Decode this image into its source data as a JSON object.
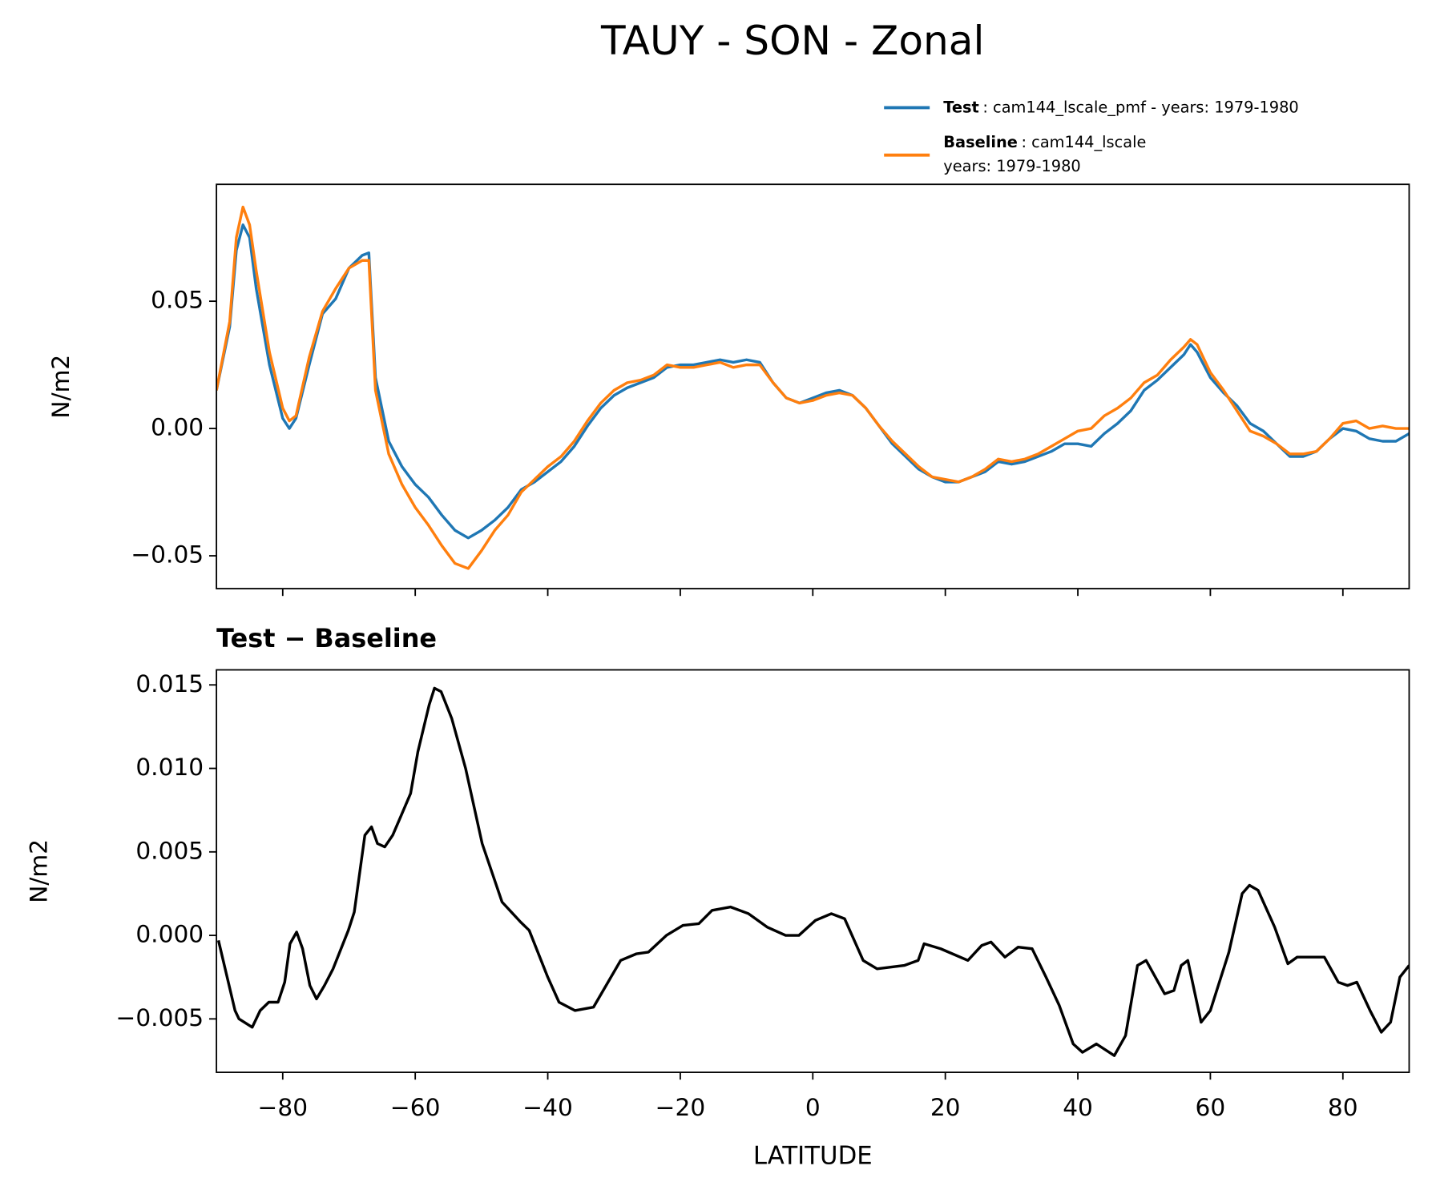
{
  "chart_data": [
    {
      "type": "line",
      "title": "TAUY - SON - Zonal",
      "ylabel": "N/m2",
      "x": [
        -90,
        -88,
        -87,
        -86,
        -85,
        -84,
        -82,
        -80,
        -79,
        -78,
        -76,
        -74,
        -72,
        -70,
        -68,
        -67,
        -66,
        -64,
        -62,
        -60,
        -58,
        -56,
        -54,
        -52,
        -50,
        -48,
        -46,
        -44,
        -42,
        -40,
        -38,
        -36,
        -34,
        -32,
        -30,
        -28,
        -26,
        -24,
        -22,
        -20,
        -18,
        -16,
        -14,
        -12,
        -10,
        -8,
        -6,
        -4,
        -2,
        0,
        2,
        4,
        6,
        8,
        10,
        12,
        14,
        16,
        18,
        20,
        22,
        24,
        26,
        28,
        30,
        32,
        34,
        36,
        38,
        40,
        42,
        44,
        46,
        48,
        50,
        52,
        54,
        56,
        57,
        58,
        60,
        62,
        64,
        66,
        68,
        70,
        72,
        74,
        76,
        78,
        80,
        82,
        84,
        86,
        88,
        90
      ],
      "series": [
        {
          "name": "Test",
          "description": [
            ": cam144_lscale_pmf - years: 1979-1980"
          ],
          "color": "#1f77b4",
          "values": [
            0.015,
            0.04,
            0.07,
            0.08,
            0.075,
            0.055,
            0.025,
            0.004,
            0.0,
            0.004,
            0.025,
            0.045,
            0.051,
            0.063,
            0.068,
            0.069,
            0.02,
            -0.005,
            -0.015,
            -0.022,
            -0.027,
            -0.034,
            -0.04,
            -0.043,
            -0.04,
            -0.036,
            -0.031,
            -0.024,
            -0.021,
            -0.017,
            -0.013,
            -0.007,
            0.001,
            0.008,
            0.013,
            0.016,
            0.018,
            0.02,
            0.024,
            0.025,
            0.025,
            0.026,
            0.027,
            0.026,
            0.027,
            0.026,
            0.018,
            0.012,
            0.01,
            0.012,
            0.014,
            0.015,
            0.013,
            0.008,
            0.001,
            -0.006,
            -0.011,
            -0.016,
            -0.019,
            -0.021,
            -0.021,
            -0.019,
            -0.017,
            -0.013,
            -0.014,
            -0.013,
            -0.011,
            -0.009,
            -0.006,
            -0.006,
            -0.007,
            -0.002,
            0.002,
            0.007,
            0.015,
            0.019,
            0.024,
            0.029,
            0.033,
            0.03,
            0.02,
            0.014,
            0.009,
            0.002,
            -0.001,
            -0.006,
            -0.011,
            -0.011,
            -0.009,
            -0.004,
            0.0,
            -0.001,
            -0.004,
            -0.005,
            -0.005,
            -0.002
          ]
        },
        {
          "name": "Baseline",
          "description": [
            ": cam144_lscale",
            "years: 1979-1980"
          ],
          "color": "#ff7f0e",
          "values": [
            0.015,
            0.042,
            0.075,
            0.087,
            0.08,
            0.062,
            0.03,
            0.008,
            0.003,
            0.005,
            0.028,
            0.046,
            0.055,
            0.063,
            0.066,
            0.066,
            0.015,
            -0.01,
            -0.022,
            -0.031,
            -0.038,
            -0.046,
            -0.053,
            -0.055,
            -0.048,
            -0.04,
            -0.034,
            -0.025,
            -0.02,
            -0.015,
            -0.011,
            -0.005,
            0.003,
            0.01,
            0.015,
            0.018,
            0.019,
            0.021,
            0.025,
            0.024,
            0.024,
            0.025,
            0.026,
            0.024,
            0.025,
            0.025,
            0.018,
            0.012,
            0.01,
            0.011,
            0.013,
            0.014,
            0.013,
            0.008,
            0.001,
            -0.005,
            -0.01,
            -0.015,
            -0.019,
            -0.02,
            -0.021,
            -0.019,
            -0.016,
            -0.012,
            -0.013,
            -0.012,
            -0.01,
            -0.007,
            -0.004,
            -0.001,
            0.0,
            0.005,
            0.008,
            0.012,
            0.018,
            0.021,
            0.027,
            0.032,
            0.035,
            0.033,
            0.022,
            0.015,
            0.007,
            -0.001,
            -0.003,
            -0.006,
            -0.01,
            -0.01,
            -0.009,
            -0.004,
            0.002,
            0.003,
            0.0,
            0.001,
            0.0,
            0.0
          ]
        }
      ],
      "xlim": [
        -90,
        90
      ],
      "xticks": [
        -80,
        -60,
        -40,
        -20,
        0,
        20,
        40,
        60,
        80
      ],
      "show_xtick_labels": false,
      "ylim": [
        -0.0629,
        0.0959
      ],
      "yticks": [
        {
          "value": -0.05,
          "label": "−0.05"
        },
        {
          "value": 0,
          "label": "0.00"
        },
        {
          "value": 0.05,
          "label": "0.05"
        }
      ]
    },
    {
      "type": "line",
      "title": "Test − Baseline",
      "ylabel": "N/m2",
      "xlabel": "LATITUDE",
      "color": "#000000",
      "x": [
        -89.7,
        -87.2,
        -86.6,
        -84.6,
        -83.4,
        -82.1,
        -80.7,
        -79.7,
        -78.9,
        -77.9,
        -77.0,
        -75.9,
        -74.9,
        -73.7,
        -72.4,
        -70.1,
        -69.2,
        -67.6,
        -66.6,
        -65.7,
        -64.6,
        -63.4,
        -62.1,
        -60.7,
        -59.6,
        -57.9,
        -57.1,
        -56.1,
        -54.5,
        -52.4,
        -49.9,
        -46.9,
        -44.1,
        -42.8,
        -40,
        -38.3,
        -35.9,
        -33.1,
        -29,
        -26.6,
        -24.8,
        -22.1,
        -19.6,
        -17.2,
        -15.2,
        -12.4,
        -9.7,
        -6.9,
        -4.1,
        -2.1,
        0.4,
        2.8,
        4.8,
        7.6,
        9.7,
        13.8,
        15.9,
        16.8,
        19.3,
        23.4,
        25.5,
        26.9,
        29,
        31,
        33.1,
        35.2,
        37.2,
        39.3,
        40.7,
        42.8,
        45.5,
        47.2,
        49,
        50.3,
        53.1,
        54.5,
        55.6,
        56.6,
        58.6,
        60,
        62.8,
        64.8,
        65.9,
        67.2,
        69.7,
        71.7,
        73.1,
        75.2,
        77.2,
        79.3,
        80.7,
        82.1,
        84.1,
        85.8,
        87.2,
        88.6,
        90
      ],
      "values": [
        -0.0003,
        -0.0045,
        -0.005,
        -0.0055,
        -0.0045,
        -0.004,
        -0.004,
        -0.0028,
        -0.0005,
        0.0002,
        -0.0008,
        -0.003,
        -0.0038,
        -0.003,
        -0.002,
        0.0003,
        0.0014,
        0.006,
        0.0065,
        0.0055,
        0.0053,
        0.006,
        0.0072,
        0.0085,
        0.011,
        0.0138,
        0.0148,
        0.0146,
        0.013,
        0.01,
        0.0055,
        0.002,
        0.0008,
        0.0003,
        -0.0025,
        -0.004,
        -0.0045,
        -0.0043,
        -0.0015,
        -0.0011,
        -0.001,
        0.0,
        0.0006,
        0.0007,
        0.0015,
        0.0017,
        0.0013,
        0.0005,
        0.0,
        0.0,
        0.0009,
        0.0013,
        0.001,
        -0.0015,
        -0.002,
        -0.0018,
        -0.0015,
        -0.0005,
        -0.0008,
        -0.0015,
        -0.0006,
        -0.0004,
        -0.0013,
        -0.0007,
        -0.0008,
        -0.0025,
        -0.0042,
        -0.0065,
        -0.007,
        -0.0065,
        -0.0072,
        -0.006,
        -0.0018,
        -0.0015,
        -0.0035,
        -0.0033,
        -0.0018,
        -0.0015,
        -0.0052,
        -0.0045,
        -0.001,
        0.0025,
        0.003,
        0.0027,
        0.0005,
        -0.0017,
        -0.0013,
        -0.0013,
        -0.0013,
        -0.0028,
        -0.003,
        -0.0028,
        -0.0045,
        -0.0058,
        -0.0052,
        -0.0025,
        -0.0018
      ],
      "xlim": [
        -90,
        90
      ],
      "xticks": [
        {
          "value": -80,
          "label": "−80"
        },
        {
          "value": -60,
          "label": "−60"
        },
        {
          "value": -40,
          "label": "−40"
        },
        {
          "value": -20,
          "label": "−20"
        },
        0,
        20,
        40,
        60,
        80
      ],
      "show_xtick_labels": true,
      "ylim": [
        -0.0082,
        0.0159
      ],
      "yticks": [
        {
          "value": -0.005,
          "label": "−0.005"
        },
        {
          "value": 0,
          "label": "0.000"
        },
        {
          "value": 0.005,
          "label": "0.005"
        },
        {
          "value": 0.01,
          "label": "0.010"
        },
        {
          "value": 0.015,
          "label": "0.015"
        }
      ]
    }
  ]
}
